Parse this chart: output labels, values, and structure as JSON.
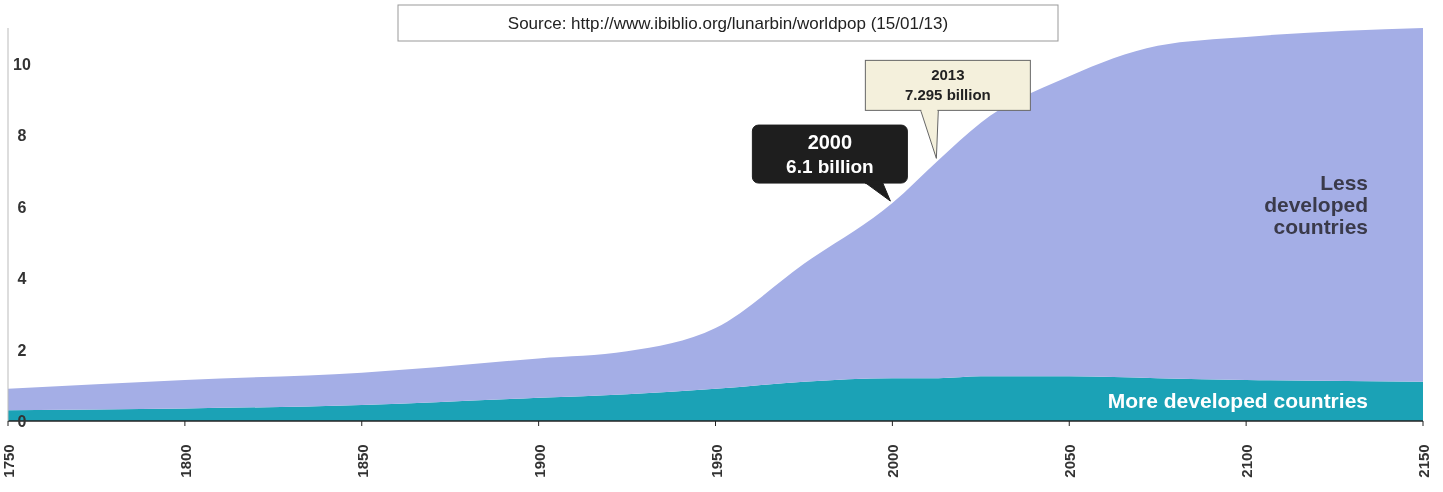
{
  "chart_data": {
    "type": "area",
    "stacked": true,
    "legend": false,
    "grid": false,
    "x": [
      1750,
      1800,
      1850,
      1900,
      1925,
      1950,
      1975,
      2000,
      2013,
      2025,
      2050,
      2075,
      2100,
      2150
    ],
    "xlim": [
      1750,
      2150
    ],
    "xticks": [
      1750,
      1800,
      1850,
      1900,
      1950,
      2000,
      2050,
      2100,
      2150
    ],
    "ylim": [
      0,
      11
    ],
    "yticks": [
      0,
      2,
      4,
      6,
      8,
      10
    ],
    "series": [
      {
        "name": "More developed countries",
        "color": "#1ba2b6",
        "values": [
          0.3,
          0.35,
          0.45,
          0.65,
          0.75,
          0.9,
          1.1,
          1.2,
          1.2,
          1.25,
          1.25,
          1.2,
          1.15,
          1.1
        ]
      },
      {
        "name": "Less developed countries",
        "color": "#a4aee6",
        "values": [
          0.6,
          0.8,
          0.9,
          1.1,
          1.2,
          1.7,
          3.3,
          4.9,
          6.1,
          7.1,
          8.4,
          9.3,
          9.6,
          9.9
        ]
      }
    ],
    "annotations": [
      "Source: http://www.ibiblio.org/lunarbin/worldpop (15/01/13)",
      {
        "text": "2000\n6.1 billion",
        "x": 2000,
        "y": 6.1
      },
      {
        "text": "2013\n7.295 billion",
        "x": 2013,
        "y": 7.295
      }
    ]
  }
}
